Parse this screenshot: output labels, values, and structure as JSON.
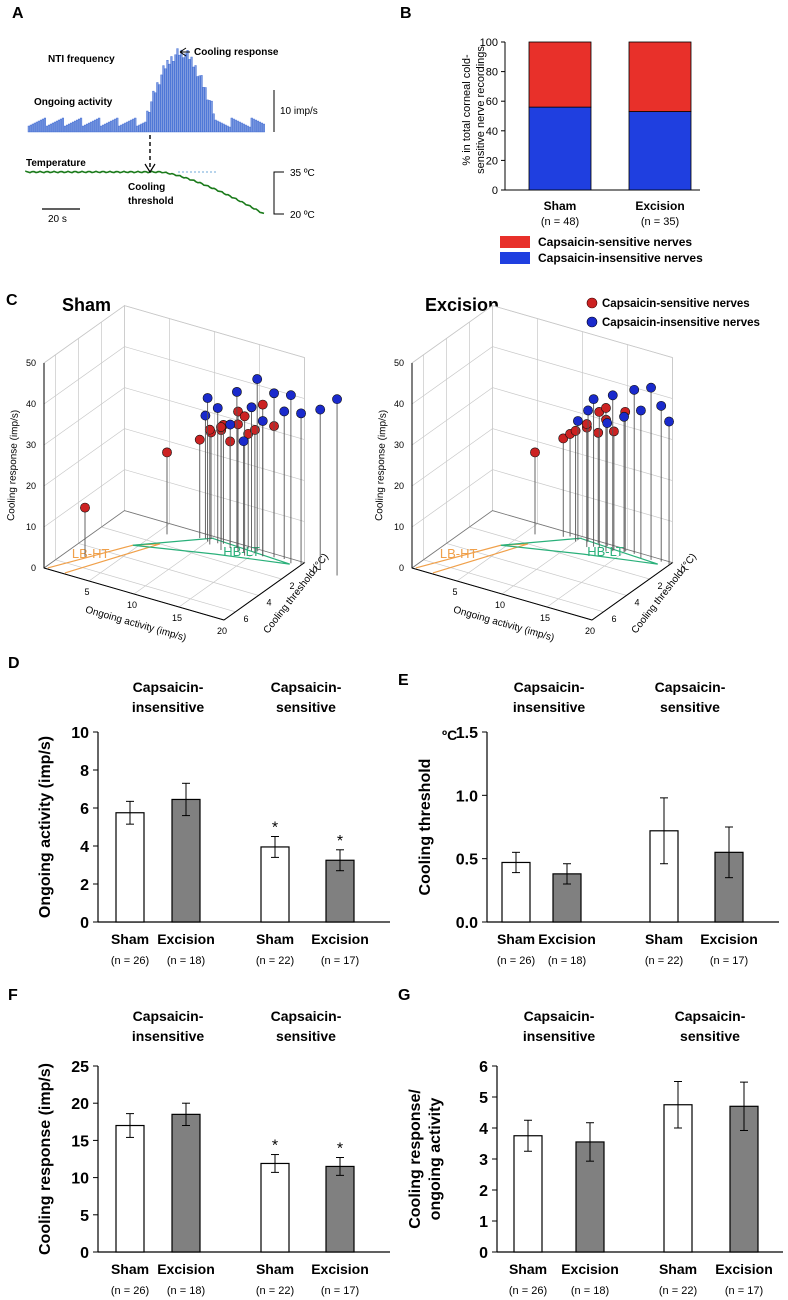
{
  "colors": {
    "sensitive": "#e8302a",
    "insensitive": "#1f3fe0",
    "trace": "#2f5fd0",
    "trace_fill": "#7f9be0",
    "temperature": "#1a7a1a",
    "grey_bar": "#808080",
    "lbht": "#f0a04a",
    "hblt": "#2ab07a",
    "dot_red": "#cc2222",
    "dot_blue": "#1a2acc"
  },
  "panels": {
    "A": {
      "letter": "A",
      "nti_label": "NTI frequency",
      "cooling_response_label": "Cooling response",
      "ongoing_label": "Ongoing activity",
      "scale_freq": "10 imp/s",
      "temperature_label": "Temperature",
      "cooling_threshold_label_1": "Cooling",
      "cooling_threshold_label_2": "threshold",
      "temp_high": "35 ºC",
      "temp_low": "20 ºC",
      "time_scale": "20 s"
    },
    "B": {
      "letter": "B"
    },
    "C": {
      "letter": "C",
      "sham_title": "Sham",
      "excision_title": "Excision",
      "legend_sensitive": "Capsaicin-sensitive nerves",
      "legend_insensitive": "Capsaicin-insensitive nerves",
      "z_label": "Cooling response (imp/s)",
      "x_label": "Ongoing activity (imp/s)",
      "y_label": "Cooling threshold (°C)",
      "lbht": "LB-HT",
      "hblt": "HB-LT",
      "z_ticks": [
        "0",
        "10",
        "20",
        "30",
        "40",
        "50"
      ],
      "x_ticks": [
        "5",
        "10",
        "15",
        "20"
      ],
      "y_ticks": [
        "0",
        "2",
        "4",
        "6"
      ]
    },
    "D": {
      "letter": "D"
    },
    "E": {
      "letter": "E",
      "unit": "ºC"
    },
    "F": {
      "letter": "F"
    },
    "G": {
      "letter": "G"
    }
  },
  "chart_data": [
    {
      "id": "B",
      "type": "bar",
      "stacked": true,
      "categories": [
        "Sham",
        "Excision"
      ],
      "category_n": [
        "(n = 48)",
        "(n = 35)"
      ],
      "ylabel_1": "% in total corneal cold-",
      "ylabel_2": "sensitive nerve recordings",
      "ylim": [
        0,
        100
      ],
      "yticks": [
        "0",
        "20",
        "40",
        "60",
        "80",
        "100"
      ],
      "series": [
        {
          "name": "Capsaicin-insensitive nerves",
          "values": [
            56,
            53
          ]
        },
        {
          "name": "Capsaicin-sensitive nerves",
          "values": [
            44,
            47
          ]
        }
      ],
      "legend": [
        "Capsaicin-sensitive nerves",
        "Capsaicin-insensitive nerves"
      ]
    },
    {
      "id": "D",
      "type": "bar",
      "group_labels_1": [
        "Capsaicin-",
        "Capsaicin-"
      ],
      "group_labels_2": [
        "insensitive",
        "sensitive"
      ],
      "categories": [
        "Sham",
        "Excision",
        "Sham",
        "Excision"
      ],
      "category_n": [
        "(n = 26)",
        "(n = 18)",
        "(n = 22)",
        "(n = 17)"
      ],
      "ylabel": "Ongoing activity (imp/s)",
      "ylim": [
        0,
        10
      ],
      "yticks": [
        "0",
        "2",
        "4",
        "6",
        "8",
        "10"
      ],
      "values": [
        5.75,
        6.45,
        3.95,
        3.25
      ],
      "errors": [
        0.6,
        0.85,
        0.55,
        0.55
      ],
      "significance": [
        "",
        "",
        "*",
        "*"
      ]
    },
    {
      "id": "E",
      "type": "bar",
      "group_labels_1": [
        "Capsaicin-",
        "Capsaicin-"
      ],
      "group_labels_2": [
        "insensitive",
        "sensitive"
      ],
      "categories": [
        "Sham",
        "Excision",
        "Sham",
        "Excision"
      ],
      "category_n": [
        "(n = 26)",
        "(n = 18)",
        "(n = 22)",
        "(n = 17)"
      ],
      "ylabel": "Cooling threshold",
      "ylim": [
        0,
        1.5
      ],
      "yticks": [
        "0.0",
        "0.5",
        "1.0",
        "1.5"
      ],
      "values": [
        0.47,
        0.38,
        0.72,
        0.55
      ],
      "errors": [
        0.08,
        0.08,
        0.26,
        0.2
      ],
      "significance": [
        "",
        "",
        "",
        ""
      ]
    },
    {
      "id": "F",
      "type": "bar",
      "group_labels_1": [
        "Capsaicin-",
        "Capsaicin-"
      ],
      "group_labels_2": [
        "insensitive",
        "sensitive"
      ],
      "categories": [
        "Sham",
        "Excision",
        "Sham",
        "Excision"
      ],
      "category_n": [
        "(n = 26)",
        "(n = 18)",
        "(n = 22)",
        "(n = 17)"
      ],
      "ylabel": "Cooling response (imp/s)",
      "ylim": [
        0,
        25
      ],
      "yticks": [
        "0",
        "5",
        "10",
        "15",
        "20",
        "25"
      ],
      "values": [
        17.0,
        18.5,
        11.9,
        11.5
      ],
      "errors": [
        1.6,
        1.5,
        1.2,
        1.2
      ],
      "significance": [
        "",
        "",
        "*",
        "*"
      ]
    },
    {
      "id": "G",
      "type": "bar",
      "group_labels_1": [
        "Capsaicin-",
        "Capsaicin-"
      ],
      "group_labels_2": [
        "insensitive",
        "sensitive"
      ],
      "categories": [
        "Sham",
        "Excision",
        "Sham",
        "Excision"
      ],
      "category_n": [
        "(n = 26)",
        "(n = 18)",
        "(n = 22)",
        "(n = 17)"
      ],
      "ylabel_1": "Cooling response/",
      "ylabel_2": "ongoing activity",
      "ylim": [
        0,
        6
      ],
      "yticks": [
        "0",
        "1",
        "2",
        "3",
        "4",
        "5",
        "6"
      ],
      "values": [
        3.75,
        3.55,
        4.75,
        4.7
      ],
      "errors": [
        0.5,
        0.62,
        0.75,
        0.78
      ],
      "significance": [
        "",
        "",
        "",
        ""
      ]
    },
    {
      "id": "C",
      "type": "scatter",
      "subcharts": [
        {
          "name": "Sham",
          "points": [
            {
              "group": "sensitive",
              "activity": 2.0,
              "threshold": 5.0,
              "response": 12
            },
            {
              "group": "sensitive",
              "activity": 6.0,
              "threshold": 1.0,
              "response": 20
            },
            {
              "group": "sensitive",
              "activity": 9.0,
              "threshold": 0.5,
              "response": 24
            },
            {
              "group": "sensitive",
              "activity": 10.0,
              "threshold": 0.3,
              "response": 26
            },
            {
              "group": "sensitive",
              "activity": 10.5,
              "threshold": 0.8,
              "response": 28
            },
            {
              "group": "sensitive",
              "activity": 11.0,
              "threshold": 0.2,
              "response": 27
            },
            {
              "group": "sensitive",
              "activity": 11.5,
              "threshold": 0.4,
              "response": 29
            },
            {
              "group": "sensitive",
              "activity": 12.0,
              "threshold": 1.0,
              "response": 30
            },
            {
              "group": "sensitive",
              "activity": 12.5,
              "threshold": 0.6,
              "response": 26
            },
            {
              "group": "sensitive",
              "activity": 13.0,
              "threshold": 0.3,
              "response": 33
            },
            {
              "group": "sensitive",
              "activity": 13.5,
              "threshold": 0.7,
              "response": 31
            },
            {
              "group": "sensitive",
              "activity": 14.0,
              "threshold": 0.2,
              "response": 28
            },
            {
              "group": "sensitive",
              "activity": 14.5,
              "threshold": 0.9,
              "response": 34
            },
            {
              "group": "sensitive",
              "activity": 15.0,
              "threshold": 0.4,
              "response": 30
            },
            {
              "group": "sensitive",
              "activity": 16.0,
              "threshold": 0.5,
              "response": 37
            },
            {
              "group": "sensitive",
              "activity": 17.0,
              "threshold": 0.3,
              "response": 32
            },
            {
              "group": "insensitive",
              "activity": 9.5,
              "threshold": 0.4,
              "response": 30
            },
            {
              "group": "insensitive",
              "activity": 10.0,
              "threshold": 0.6,
              "response": 35
            },
            {
              "group": "insensitive",
              "activity": 11.0,
              "threshold": 0.5,
              "response": 33
            },
            {
              "group": "insensitive",
              "activity": 12.0,
              "threshold": 0.2,
              "response": 29
            },
            {
              "group": "insensitive",
              "activity": 13.0,
              "threshold": 0.4,
              "response": 38
            },
            {
              "group": "insensitive",
              "activity": 14.0,
              "threshold": 0.6,
              "response": 27
            },
            {
              "group": "insensitive",
              "activity": 14.5,
              "threshold": 0.3,
              "response": 35
            },
            {
              "group": "insensitive",
              "activity": 15.0,
              "threshold": 0.2,
              "response": 42
            },
            {
              "group": "insensitive",
              "activity": 16.0,
              "threshold": 0.5,
              "response": 33
            },
            {
              "group": "insensitive",
              "activity": 17.0,
              "threshold": 0.3,
              "response": 40
            },
            {
              "group": "insensitive",
              "activity": 18.0,
              "threshold": 0.2,
              "response": 36
            },
            {
              "group": "insensitive",
              "activity": 19.0,
              "threshold": 0.4,
              "response": 41
            },
            {
              "group": "insensitive",
              "activity": 20.0,
              "threshold": 0.3,
              "response": 37
            },
            {
              "group": "insensitive",
              "activity": 22.0,
              "threshold": 0.2,
              "response": 39
            },
            {
              "group": "insensitive",
              "activity": 24.0,
              "threshold": 0.3,
              "response": 43
            }
          ]
        },
        {
          "name": "Excision",
          "points": [
            {
              "group": "sensitive",
              "activity": 6.0,
              "threshold": 1.0,
              "response": 20
            },
            {
              "group": "sensitive",
              "activity": 8.5,
              "threshold": 0.5,
              "response": 24
            },
            {
              "group": "sensitive",
              "activity": 9.0,
              "threshold": 0.3,
              "response": 25
            },
            {
              "group": "sensitive",
              "activity": 10.0,
              "threshold": 0.6,
              "response": 27
            },
            {
              "group": "sensitive",
              "activity": 11.0,
              "threshold": 0.4,
              "response": 28
            },
            {
              "group": "sensitive",
              "activity": 11.5,
              "threshold": 0.8,
              "response": 30
            },
            {
              "group": "sensitive",
              "activity": 12.0,
              "threshold": 0.2,
              "response": 27
            },
            {
              "group": "sensitive",
              "activity": 12.5,
              "threshold": 0.5,
              "response": 33
            },
            {
              "group": "sensitive",
              "activity": 13.0,
              "threshold": 0.3,
              "response": 31
            },
            {
              "group": "sensitive",
              "activity": 13.5,
              "threshold": 0.7,
              "response": 35
            },
            {
              "group": "sensitive",
              "activity": 14.0,
              "threshold": 0.4,
              "response": 29
            },
            {
              "group": "sensitive",
              "activity": 15.0,
              "threshold": 0.2,
              "response": 34
            },
            {
              "group": "insensitive",
              "activity": 10.0,
              "threshold": 0.4,
              "response": 29
            },
            {
              "group": "insensitive",
              "activity": 11.0,
              "threshold": 0.3,
              "response": 32
            },
            {
              "group": "insensitive",
              "activity": 12.0,
              "threshold": 0.6,
              "response": 36
            },
            {
              "group": "insensitive",
              "activity": 13.0,
              "threshold": 0.2,
              "response": 30
            },
            {
              "group": "insensitive",
              "activity": 14.0,
              "threshold": 0.5,
              "response": 38
            },
            {
              "group": "insensitive",
              "activity": 15.0,
              "threshold": 0.3,
              "response": 33
            },
            {
              "group": "insensitive",
              "activity": 16.0,
              "threshold": 0.2,
              "response": 40
            },
            {
              "group": "insensitive",
              "activity": 17.0,
              "threshold": 0.4,
              "response": 36
            },
            {
              "group": "insensitive",
              "activity": 18.0,
              "threshold": 0.3,
              "response": 42
            },
            {
              "group": "insensitive",
              "activity": 19.0,
              "threshold": 0.2,
              "response": 38
            },
            {
              "group": "insensitive",
              "activity": 20.0,
              "threshold": 0.3,
              "response": 35
            }
          ]
        }
      ]
    }
  ]
}
